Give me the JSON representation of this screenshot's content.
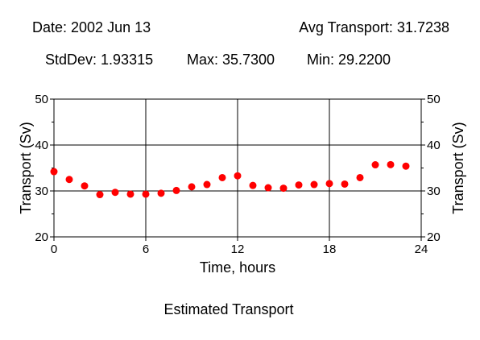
{
  "header": {
    "date": "Date: 2002 Jun 13",
    "avg": "Avg Transport: 31.7238",
    "stddev": "StdDev: 1.93315",
    "max": "Max: 35.7300",
    "min": "Min: 29.2200"
  },
  "caption": "Estimated Transport",
  "colors": {
    "point": "#ff0000",
    "grid": "#000000",
    "axis": "#000000"
  },
  "chart_data": {
    "type": "scatter",
    "title": "",
    "xlabel": "Time, hours",
    "ylabel": "Transport (Sv)",
    "xlim": [
      0,
      24
    ],
    "ylim": [
      20,
      50
    ],
    "xticks": [
      0,
      6,
      12,
      18,
      24
    ],
    "yticks": [
      20,
      30,
      40,
      50
    ],
    "grid": true,
    "series": [
      {
        "x": [
          0,
          1,
          2,
          3,
          4,
          5,
          6,
          7,
          8,
          9,
          10,
          11,
          12,
          13,
          14,
          15,
          16,
          17,
          18,
          19,
          20,
          21,
          22,
          23
        ],
        "values": [
          34.2,
          32.5,
          31.1,
          29.2,
          29.7,
          29.3,
          29.3,
          29.5,
          30.1,
          30.9,
          31.4,
          32.9,
          33.3,
          31.2,
          30.7,
          30.6,
          31.3,
          31.4,
          31.6,
          31.5,
          32.9,
          35.7,
          35.73,
          35.4
        ]
      }
    ]
  }
}
